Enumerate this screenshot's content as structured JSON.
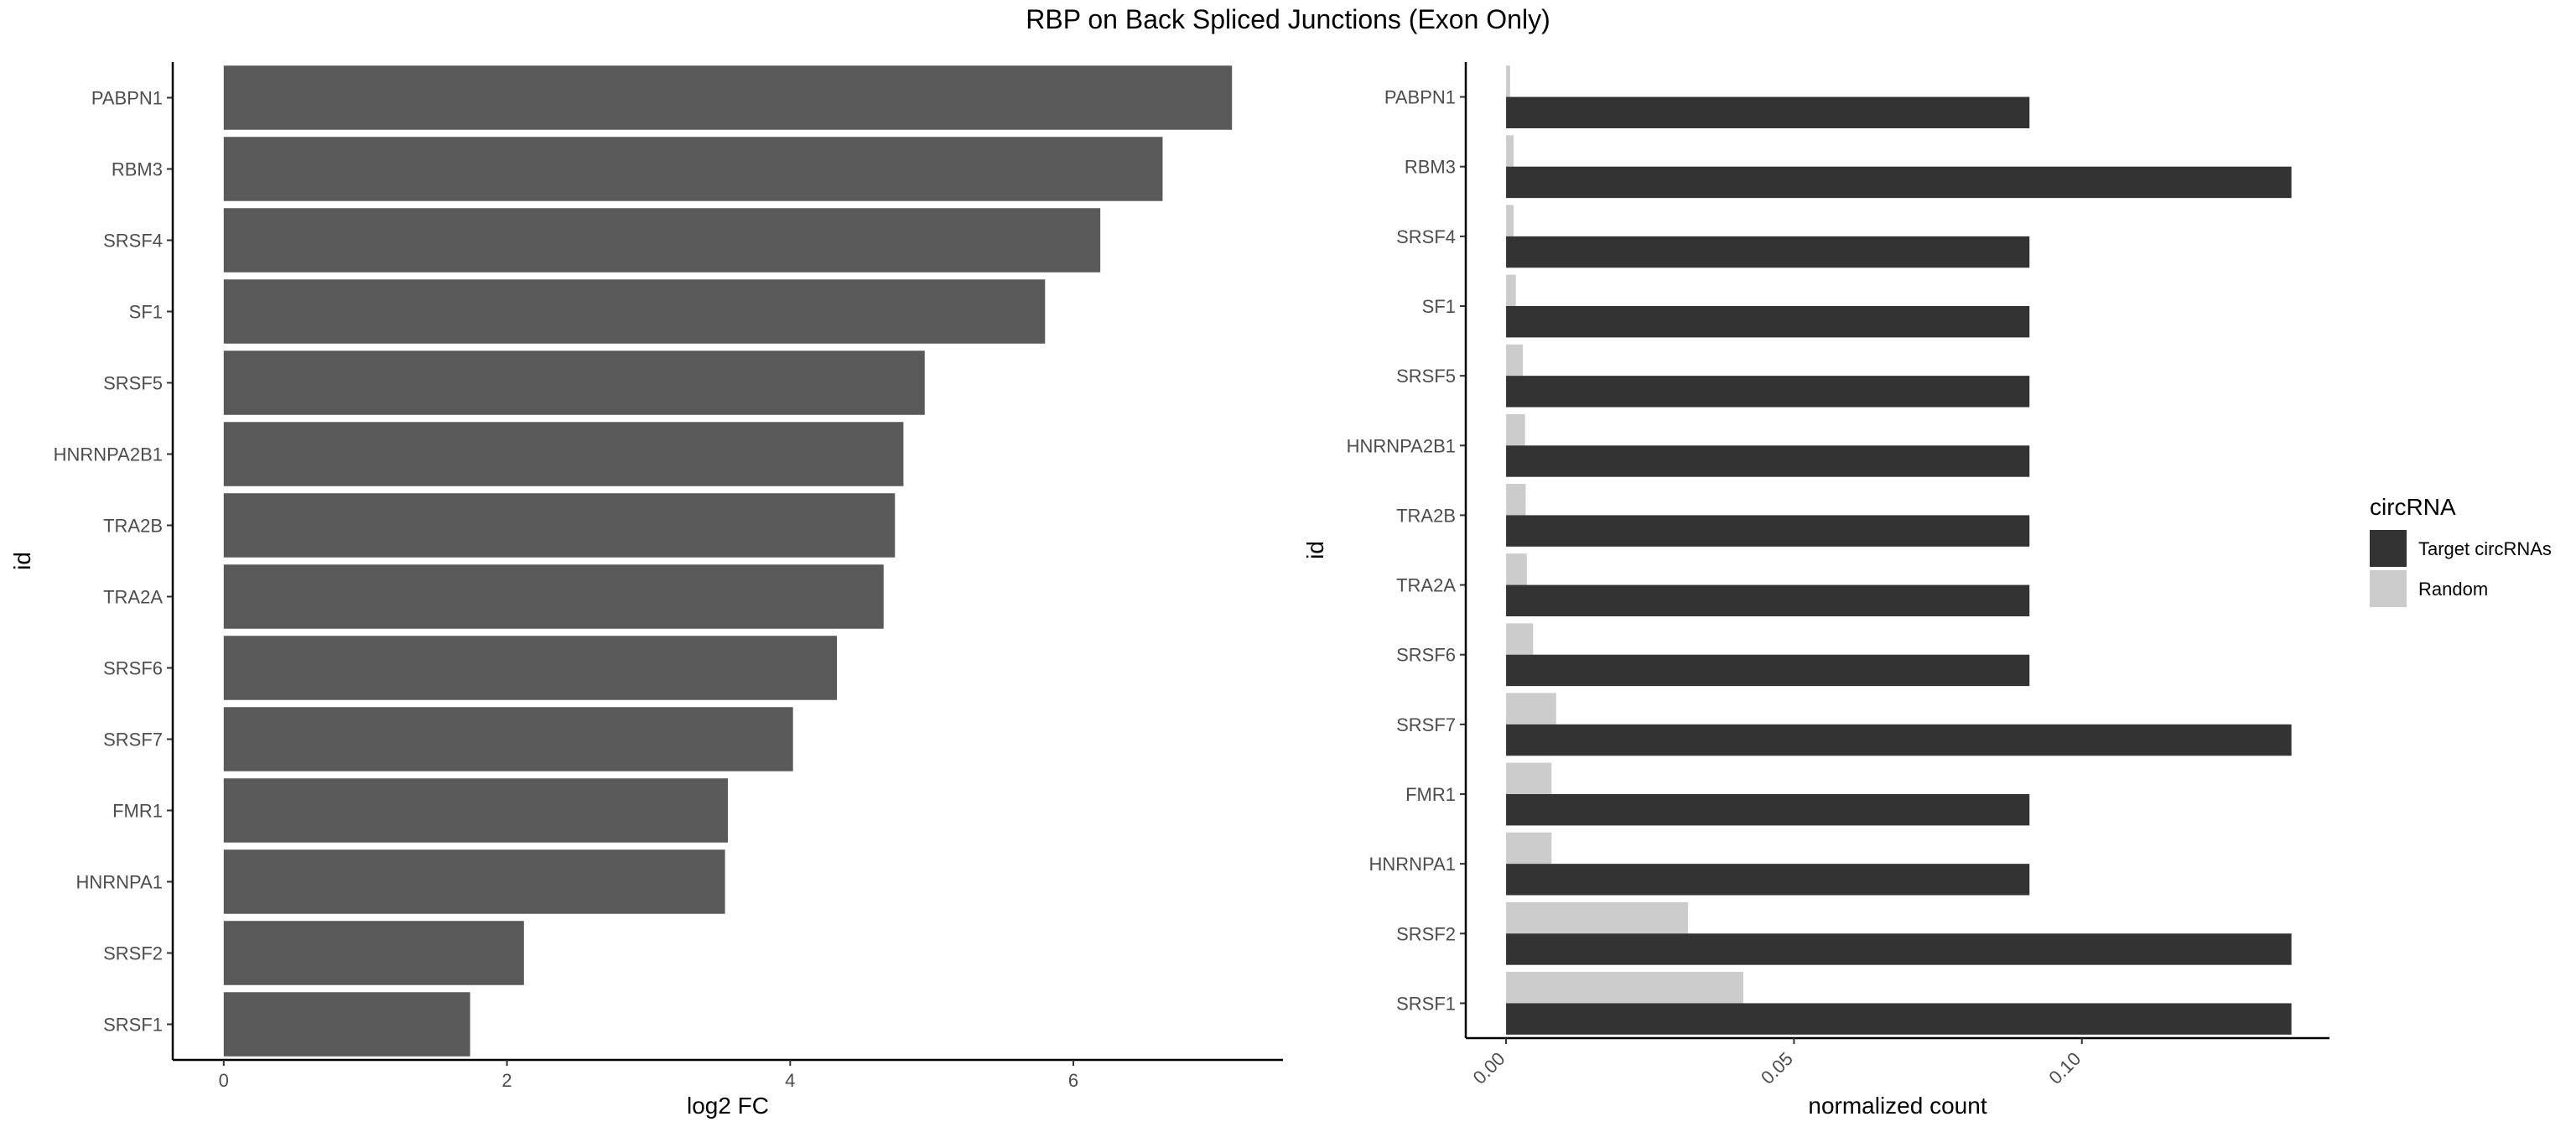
{
  "title": "RBP on Back Spliced Junctions (Exon Only)",
  "chart_data": [
    {
      "type": "bar",
      "orientation": "horizontal",
      "ylabel": "id",
      "xlabel": "log2 FC",
      "categories": [
        "PABPN1",
        "RBM3",
        "SRSF4",
        "SF1",
        "SRSF5",
        "HNRNPA2B1",
        "TRA2B",
        "TRA2A",
        "SRSF6",
        "SRSF7",
        "FMR1",
        "HNRNPA1",
        "SRSF2",
        "SRSF1"
      ],
      "values": [
        7.12,
        6.63,
        6.19,
        5.8,
        4.95,
        4.8,
        4.74,
        4.66,
        4.33,
        4.02,
        3.56,
        3.54,
        2.12,
        1.74
      ],
      "xlim": [
        -0.36,
        7.48
      ],
      "xticks": [
        "0",
        "2",
        "4",
        "6"
      ],
      "xtick_values": [
        0,
        2,
        4,
        6
      ],
      "bar_color": "#595959",
      "grid": false
    },
    {
      "type": "bar",
      "orientation": "horizontal",
      "grouped": true,
      "ylabel": "id",
      "xlabel": "normalized count",
      "categories": [
        "PABPN1",
        "RBM3",
        "SRSF4",
        "SF1",
        "SRSF5",
        "HNRNPA2B1",
        "TRA2B",
        "TRA2A",
        "SRSF6",
        "SRSF7",
        "FMR1",
        "HNRNPA1",
        "SRSF2",
        "SRSF1"
      ],
      "series": [
        {
          "name": "Target circRNAs",
          "color": "#333333",
          "values": [
            0.0909,
            0.1364,
            0.0909,
            0.0909,
            0.0909,
            0.0909,
            0.0909,
            0.0909,
            0.0909,
            0.1364,
            0.0909,
            0.0909,
            0.1364,
            0.1364
          ]
        },
        {
          "name": "Random",
          "color": "#cccccc",
          "values": [
            0.0007,
            0.0013,
            0.0013,
            0.0017,
            0.0029,
            0.0033,
            0.0034,
            0.0036,
            0.0047,
            0.0087,
            0.0079,
            0.0079,
            0.0316,
            0.0412
          ]
        }
      ],
      "xlim": [
        -0.007,
        0.143
      ],
      "xticks": [
        "0.00",
        "0.05",
        "0.10"
      ],
      "xtick_values": [
        0,
        0.05,
        0.1
      ],
      "legend": {
        "title": "circRNA",
        "position": "right"
      },
      "grid": false
    }
  ]
}
